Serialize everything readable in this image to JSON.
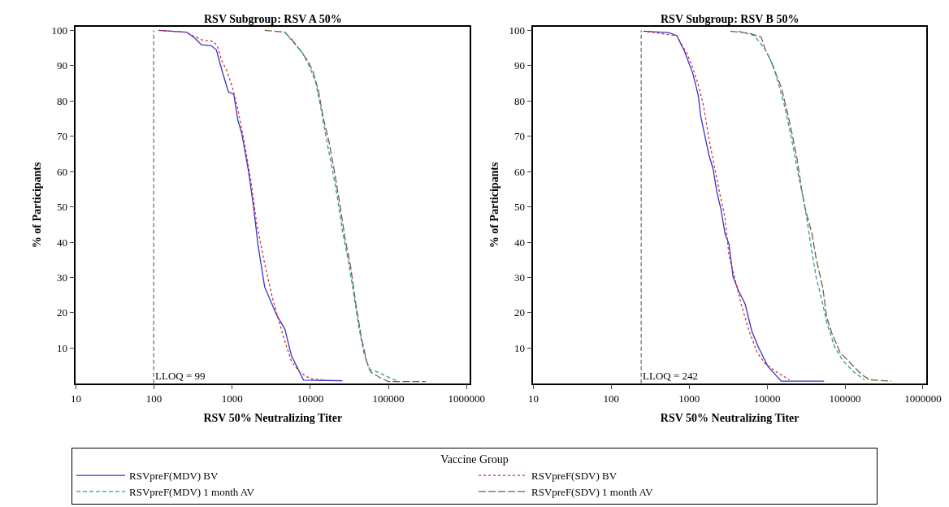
{
  "chart_data": [
    {
      "type": "line",
      "title": "RSV Subgroup: RSV A 50%",
      "xlabel": "RSV 50% Neutralizing Titer",
      "ylabel": "% of Participants",
      "legend_title": "Vaccine Group",
      "legend": "bottom",
      "log": "x",
      "grid": false,
      "marker": "none",
      "xlim": [
        10,
        1100000
      ],
      "xticks": [
        10,
        100,
        1000,
        10000,
        100000,
        1000000
      ],
      "ylim": [
        0,
        101
      ],
      "yticks": [
        10,
        20,
        30,
        40,
        50,
        60,
        70,
        80,
        90,
        100
      ],
      "ref_lines": [
        {
          "axis": "x",
          "value": 99,
          "label": "LLOQ = 99",
          "color": "#666666",
          "line_style": "dashed"
        }
      ],
      "series": [
        {
          "name": "RSVpreF(MDV) BV",
          "color": "#3333cc",
          "line_style": "solid",
          "x": [
            114,
            262,
            333,
            405,
            535,
            627,
            764,
            895,
            1049,
            1181,
            1330,
            1622,
            1899,
            2138,
            2606,
            3719,
            4716,
            5745,
            8200,
            16070,
            25800
          ],
          "values": [
            100,
            99.5,
            97.8,
            95.9,
            95.7,
            94.5,
            87.6,
            82.6,
            81.9,
            74.6,
            70.7,
            60.0,
            49.2,
            39.3,
            27.3,
            19.3,
            15.4,
            7.8,
            0.9,
            0.8,
            0.7
          ]
        },
        {
          "name": "RSVpreF(SDV) BV",
          "color": "#cc3333",
          "line_style": "dotted",
          "x": [
            114,
            250,
            422,
            579,
            652,
            734,
            861,
            1009,
            1181,
            1384,
            1754,
            2055,
            2606,
            3303,
            4530,
            5745,
            7280,
            10000,
            14860
          ],
          "values": [
            100,
            99.5,
            97.2,
            96.9,
            95.3,
            91.5,
            88.4,
            83.8,
            77.7,
            70.0,
            56.9,
            45.4,
            33.9,
            23.9,
            13.1,
            6.2,
            3.2,
            1.3,
            0.9
          ]
        },
        {
          "name": "RSVpreF(MDV) 1 month AV",
          "color": "#339999",
          "line_style": "dashed",
          "x": [
            4716,
            5745,
            7880,
            10000,
            11720,
            13740,
            16070,
            18840,
            22070,
            25800,
            30270,
            35480,
            41590,
            48640,
            57020,
            72280,
            103200,
            136100
          ],
          "values": [
            99.5,
            97.2,
            93.8,
            89.2,
            85.3,
            77.7,
            69.2,
            61.5,
            53.1,
            43.1,
            35.4,
            26.2,
            16.2,
            8.5,
            3.9,
            3.2,
            1.6,
            0.5
          ]
        },
        {
          "name": "RSVpreF(SDV) 1 month AV",
          "color": "#7a5c3a",
          "line_style": "dashed",
          "x": [
            2606,
            4716,
            5745,
            7280,
            9240,
            10820,
            12680,
            14860,
            17400,
            20380,
            23880,
            27990,
            32810,
            38370,
            44980,
            52720,
            59290,
            78340,
            99300,
            300600
          ],
          "values": [
            100,
            99.5,
            97.6,
            94.6,
            91.5,
            88.4,
            83.0,
            74.6,
            68.4,
            60.0,
            50.8,
            40.8,
            33.1,
            22.4,
            13.1,
            6.2,
            3.2,
            1.6,
            0.5,
            0.5
          ]
        }
      ]
    },
    {
      "type": "line",
      "title": "RSV Subgroup: RSV B 50%",
      "xlabel": "RSV 50% Neutralizing Titer",
      "ylabel": "% of Participants",
      "log": "x",
      "grid": false,
      "marker": "none",
      "xlim": [
        10,
        1100000
      ],
      "xticks": [
        10,
        100,
        1000,
        10000,
        100000,
        1000000
      ],
      "ylim": [
        0,
        101
      ],
      "yticks": [
        10,
        20,
        30,
        40,
        50,
        60,
        70,
        80,
        90,
        100
      ],
      "ref_lines": [
        {
          "axis": "x",
          "value": 242,
          "label": "LLOQ = 242",
          "color": "#666666",
          "line_style": "dashed"
        }
      ],
      "series": [
        {
          "color": "#3333cc",
          "line_style": "solid",
          "x": [
            258,
            547,
            693,
            879,
            1114,
            1207,
            1306,
            1413,
            1592,
            1792,
            2018,
            2271,
            2557,
            2879,
            3243,
            3653,
            4279,
            5212,
            6355,
            7745,
            10220,
            15180,
            53810
          ],
          "values": [
            99.8,
            99.4,
            98.5,
            93.9,
            87.7,
            84.7,
            81.6,
            75.4,
            70.1,
            64.7,
            60.9,
            54.0,
            49.3,
            42.4,
            39.4,
            30.2,
            26.3,
            22.5,
            14.8,
            10.2,
            4.8,
            0.6,
            0.6
          ]
        },
        {
          "color": "#cc3333",
          "line_style": "dotted",
          "x": [
            290,
            693,
            812,
            951,
            1114,
            1306,
            1531,
            1792,
            2100,
            2456,
            2879,
            3243,
            3799,
            4631,
            5870,
            7448,
            9436,
            12960,
            19250
          ],
          "values": [
            99.6,
            98.5,
            95.8,
            93.1,
            89.3,
            84.7,
            78.5,
            69.3,
            61.6,
            54.0,
            47.0,
            36.1,
            30.2,
            22.5,
            14.8,
            8.7,
            5.6,
            3.3,
            1.0
          ]
        },
        {
          "color": "#339999",
          "line_style": "dashed",
          "x": [
            4279,
            6880,
            9436,
            11970,
            14030,
            16430,
            19250,
            22560,
            25390,
            28570,
            32150,
            36210,
            42420,
            51750,
            58250,
            73830,
            93670,
            128600,
            176300
          ],
          "values": [
            99.8,
            98.5,
            94.6,
            90.0,
            84.7,
            79.3,
            72.4,
            64.7,
            58.6,
            53.2,
            47.0,
            39.4,
            30.2,
            22.5,
            17.1,
            10.2,
            6.4,
            3.3,
            1.0
          ]
        },
        {
          "color": "#7a5c3a",
          "line_style": "dashed",
          "x": [
            3373,
            5870,
            8384,
            9436,
            11060,
            12960,
            15180,
            17790,
            20840,
            24410,
            27480,
            30930,
            37650,
            42420,
            51750,
            58250,
            68220,
            86460,
            118900,
            162800,
            206500,
            388800
          ],
          "values": [
            99.8,
            99.2,
            98.1,
            94.6,
            91.6,
            87.7,
            83.9,
            77.7,
            70.8,
            63.2,
            55.5,
            49.3,
            42.4,
            35.5,
            27.1,
            18.6,
            14.0,
            8.7,
            5.6,
            2.5,
            1.0,
            0.6
          ]
        }
      ]
    }
  ]
}
